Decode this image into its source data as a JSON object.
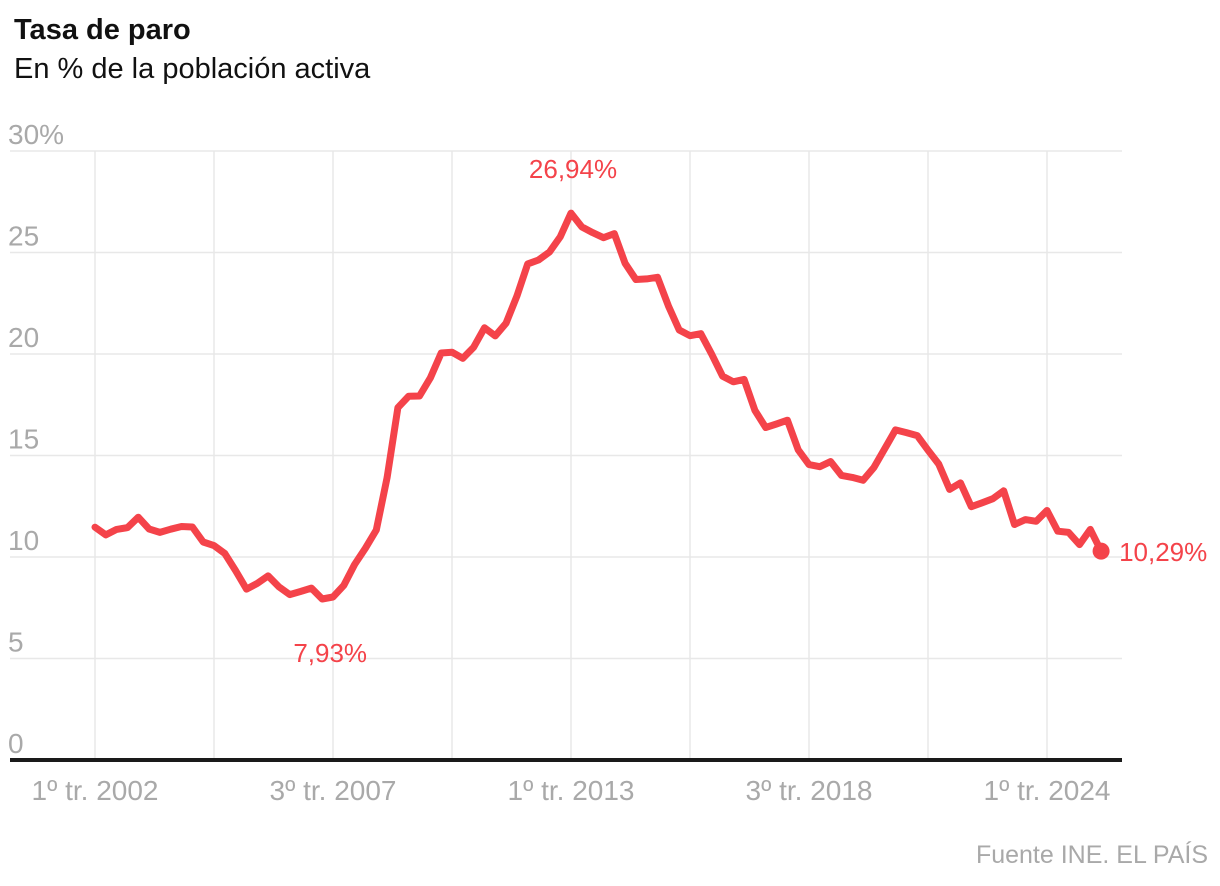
{
  "header": {
    "title": "Tasa de paro",
    "subtitle": "En % de la población activa"
  },
  "footer": {
    "source": "Fuente INE. EL PAÍS"
  },
  "colors": {
    "line": "#f4434a",
    "annotation": "#f4434a",
    "tick_label": "#a9a9a9",
    "gridline": "#e8e8e8",
    "axis": "#1a1a1a",
    "text": "#111111",
    "background": "#ffffff"
  },
  "chart_data": {
    "type": "line",
    "title": "Tasa de paro",
    "subtitle": "En % de la población activa",
    "unit": "%",
    "frequency": "quarterly",
    "grid": true,
    "legend": false,
    "y_axis": {
      "min": 0,
      "max": 30,
      "tick_step": 5,
      "ticks": [
        {
          "value": 30,
          "label": "30%"
        },
        {
          "value": 25,
          "label": "25"
        },
        {
          "value": 20,
          "label": "20"
        },
        {
          "value": 15,
          "label": "15"
        },
        {
          "value": 10,
          "label": "10"
        },
        {
          "value": 5,
          "label": "5"
        },
        {
          "value": 0,
          "label": "0"
        }
      ]
    },
    "x_ticks": [
      {
        "index": 0,
        "label": "1º tr. 2002"
      },
      {
        "index": 22,
        "label": "3º tr. 2007"
      },
      {
        "index": 44,
        "label": "1º tr. 2013"
      },
      {
        "index": 66,
        "label": "3º tr. 2018"
      },
      {
        "index": 88,
        "label": "1º tr. 2024"
      }
    ],
    "gridlines": {
      "horizontal_step": 5,
      "vertical_every_quarters": 11
    },
    "series": [
      {
        "name": "Tasa de paro",
        "color": "#f4434a",
        "start": "1º tr. 2002",
        "end": "2º tr. 2025",
        "values": [
          11.47,
          11.09,
          11.36,
          11.45,
          11.96,
          11.38,
          11.21,
          11.37,
          11.5,
          11.48,
          10.74,
          10.56,
          10.17,
          9.33,
          8.42,
          8.7,
          9.07,
          8.53,
          8.15,
          8.3,
          8.47,
          7.93,
          8.03,
          8.6,
          9.63,
          10.44,
          11.33,
          13.91,
          17.36,
          17.92,
          17.93,
          18.83,
          20.05,
          20.09,
          19.79,
          20.33,
          21.29,
          20.89,
          21.52,
          22.85,
          24.44,
          24.63,
          25.02,
          25.77,
          26.94,
          26.26,
          25.98,
          25.73,
          25.93,
          24.47,
          23.67,
          23.7,
          23.78,
          22.37,
          21.18,
          20.9,
          21.0,
          20.0,
          18.91,
          18.63,
          18.75,
          17.22,
          16.38,
          16.55,
          16.74,
          15.28,
          14.55,
          14.45,
          14.7,
          14.02,
          13.92,
          13.78,
          14.41,
          15.33,
          16.26,
          16.13,
          15.98,
          15.26,
          14.57,
          13.33,
          13.65,
          12.48,
          12.67,
          12.87,
          13.26,
          11.6,
          11.84,
          11.76,
          12.29,
          11.27,
          11.21,
          10.61,
          11.36,
          10.29
        ]
      }
    ],
    "annotations": [
      {
        "label": "26,94%",
        "index": 44,
        "value": 26.94,
        "placement": "above"
      },
      {
        "label": "7,93%",
        "index": 21,
        "value": 7.93,
        "placement": "below"
      },
      {
        "label": "10,29%",
        "index": 93,
        "value": 10.29,
        "placement": "right",
        "marker": "dot"
      }
    ]
  }
}
